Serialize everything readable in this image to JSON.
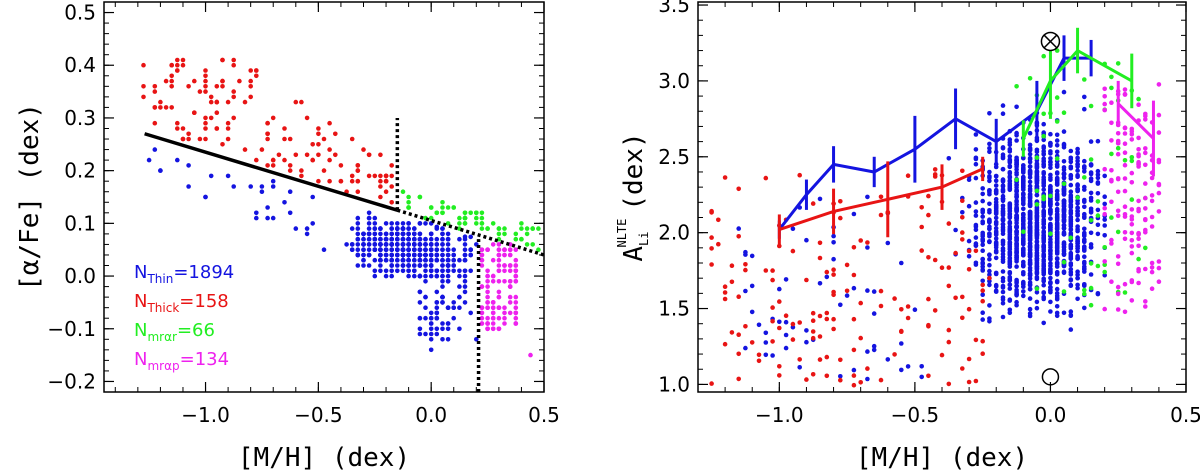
{
  "chart_data": [
    {
      "type": "scatter",
      "panel": "left",
      "xlabel": "[M/H] (dex)",
      "ylabel": "[α/Fe] (dex)",
      "xlim": [
        -1.45,
        0.5
      ],
      "ylim": [
        -0.22,
        0.52
      ],
      "xticks": [
        -1.0,
        -0.5,
        0.0,
        0.5
      ],
      "xtick_labels": [
        "−1.0",
        "−0.5",
        "0.0",
        "0.5"
      ],
      "yticks": [
        -0.2,
        -0.1,
        0.0,
        0.1,
        0.2,
        0.3,
        0.4,
        0.5
      ],
      "ytick_labels": [
        "−0.2",
        "−0.1",
        "0.0",
        "0.1",
        "0.2",
        "0.3",
        "0.4",
        "0.5"
      ],
      "colors": {
        "thin": "#1414e0",
        "thick": "#e81414",
        "mrar": "#22ee22",
        "mrap": "#ee22ee",
        "line": "#000000"
      },
      "legend": [
        {
          "key": "thin",
          "label": "N",
          "sub": "Thin",
          "value": "=1894"
        },
        {
          "key": "thick",
          "label": "N",
          "sub": "Thick",
          "value": "=158"
        },
        {
          "key": "mrar",
          "label": "N",
          "sub": "mrαr",
          "value": "=66"
        },
        {
          "key": "mrap",
          "label": "N",
          "sub": "mrαp",
          "value": "=134"
        }
      ],
      "separation_line": {
        "x": [
          -1.27,
          -0.15
        ],
        "y": [
          0.27,
          0.125
        ],
        "extension_x": [
          -0.15,
          0.5
        ],
        "extension_y": [
          0.125,
          0.04
        ]
      },
      "vertical_lines": [
        {
          "x": -0.15,
          "y": [
            0.125,
            0.3
          ]
        },
        {
          "x": 0.21,
          "y": [
            -0.22,
            0.07
          ]
        }
      ],
      "series": [
        {
          "name": "thin",
          "count": 1894,
          "region": {
            "x": [
              -1.27,
              0.21
            ],
            "y": [
              -0.2,
              0.22
            ]
          }
        },
        {
          "name": "thick",
          "count": 158,
          "region": {
            "x": [
              -1.27,
              -0.15
            ],
            "y": [
              0.12,
              0.41
            ]
          }
        },
        {
          "name": "mrar",
          "count": 66,
          "region": {
            "x": [
              -0.15,
              0.5
            ],
            "y": [
              0.06,
              0.15
            ]
          }
        },
        {
          "name": "mrap",
          "count": 134,
          "region": {
            "x": [
              0.21,
              0.42
            ],
            "y": [
              -0.15,
              0.07
            ]
          }
        }
      ]
    },
    {
      "type": "scatter",
      "panel": "right",
      "xlabel": "[M/H] (dex)",
      "ylabel": "A_Li^NLTE (dex)",
      "ylabel_base": "A",
      "ylabel_sub": "Li",
      "ylabel_sup": "NLTE",
      "ylabel_unit": "(dex)",
      "xlim": [
        -1.3,
        0.5
      ],
      "ylim": [
        0.95,
        3.52
      ],
      "xticks": [
        -1.0,
        -0.5,
        0.0,
        0.5
      ],
      "xtick_labels": [
        "−1.0",
        "−0.5",
        "0.0",
        "0.5"
      ],
      "yticks": [
        1.0,
        1.5,
        2.0,
        2.5,
        3.0,
        3.5
      ],
      "ytick_labels": [
        "1.0",
        "1.5",
        "2.0",
        "2.5",
        "3.0",
        "3.5"
      ],
      "sun_symbol": {
        "x": 0.0,
        "y": 3.26
      },
      "meteoritic_symbol": {
        "x": 0.0,
        "y": 1.05
      },
      "trends": [
        {
          "name": "thin",
          "x": [
            -1.0,
            -0.9,
            -0.8,
            -0.65,
            -0.5,
            -0.35,
            -0.2,
            -0.05,
            0.05,
            0.15
          ],
          "y": [
            2.02,
            2.25,
            2.45,
            2.4,
            2.55,
            2.75,
            2.6,
            2.8,
            3.15,
            3.15
          ],
          "err": [
            0.06,
            0.1,
            0.12,
            0.1,
            0.22,
            0.2,
            0.15,
            0.2,
            0.15,
            0.12
          ]
        },
        {
          "name": "thick",
          "x": [
            -1.0,
            -0.8,
            -0.6,
            -0.4,
            -0.25
          ],
          "y": [
            2.02,
            2.14,
            2.22,
            2.3,
            2.42
          ],
          "err": [
            0.1,
            0.15,
            0.25,
            0.15,
            0.08
          ]
        },
        {
          "name": "mrar",
          "x": [
            -0.1,
            0.0,
            0.1,
            0.3
          ],
          "y": [
            2.62,
            3.0,
            3.2,
            3.0
          ],
          "err": [
            0.12,
            0.25,
            0.15,
            0.18
          ]
        },
        {
          "name": "mrap",
          "x": [
            0.25,
            0.38
          ],
          "y": [
            2.85,
            2.62
          ],
          "err": [
            0.15,
            0.25
          ]
        }
      ]
    }
  ]
}
